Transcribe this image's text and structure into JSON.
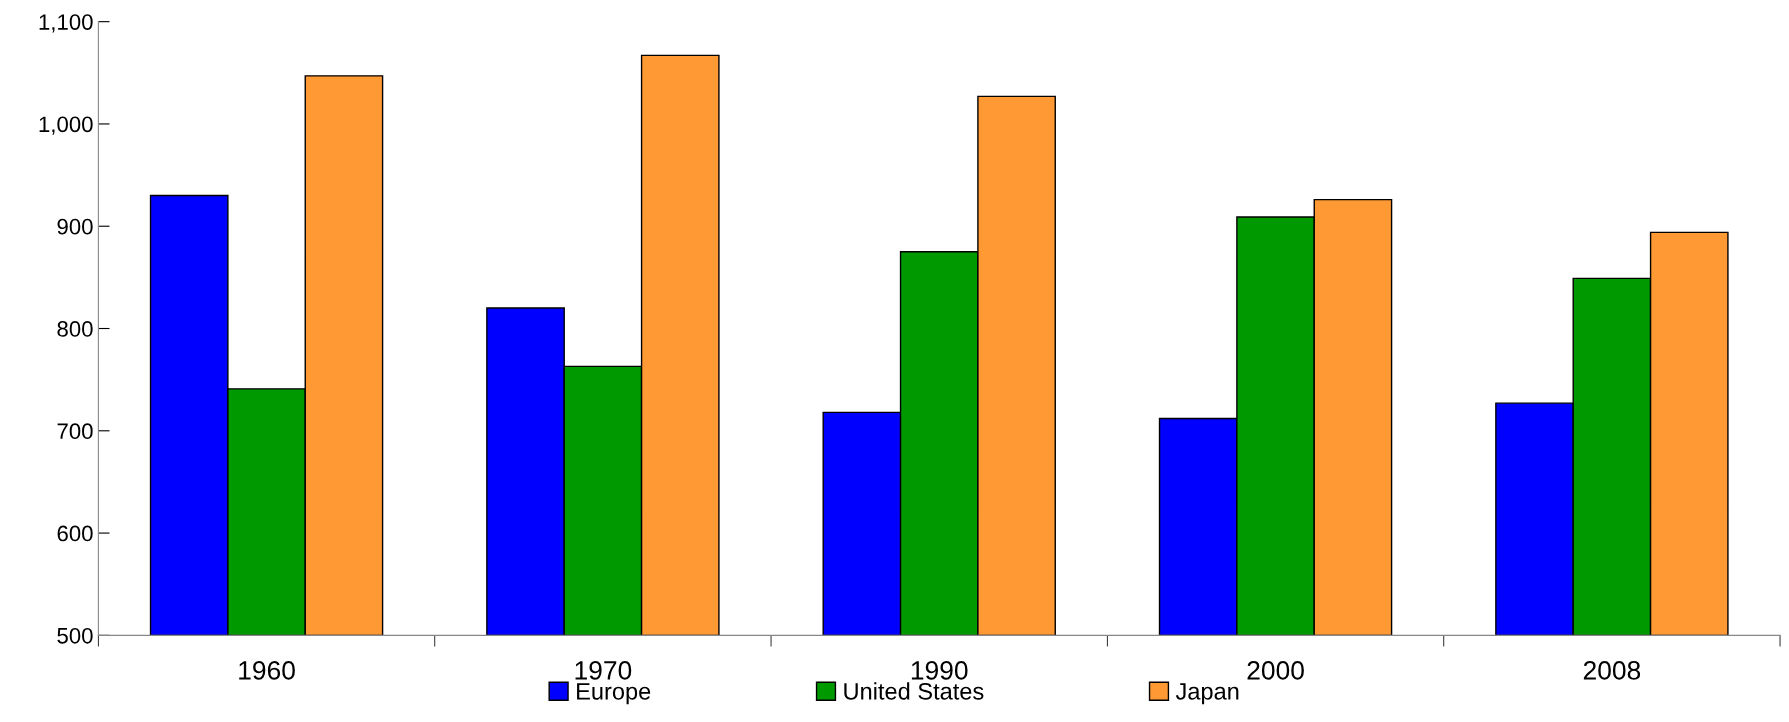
{
  "chart_data": {
    "type": "bar",
    "categories": [
      "1960",
      "1970",
      "1990",
      "2000",
      "2008"
    ],
    "series": [
      {
        "name": "Europe",
        "color": "#0000ff",
        "values": [
          930,
          820,
          718,
          712,
          727
        ]
      },
      {
        "name": "United States",
        "color": "#009900",
        "values": [
          741,
          763,
          875,
          909,
          849
        ]
      },
      {
        "name": "Japan",
        "color": "#ff9933",
        "values": [
          1047,
          1067,
          1027,
          926,
          894
        ]
      }
    ],
    "ylim": [
      500,
      1100
    ],
    "yticks": [
      500,
      600,
      700,
      800,
      900,
      {
        "value": 1000,
        "label": "1,000"
      },
      {
        "value": 1100,
        "label": "1,100"
      }
    ],
    "grid": false,
    "legend": "bottom"
  }
}
